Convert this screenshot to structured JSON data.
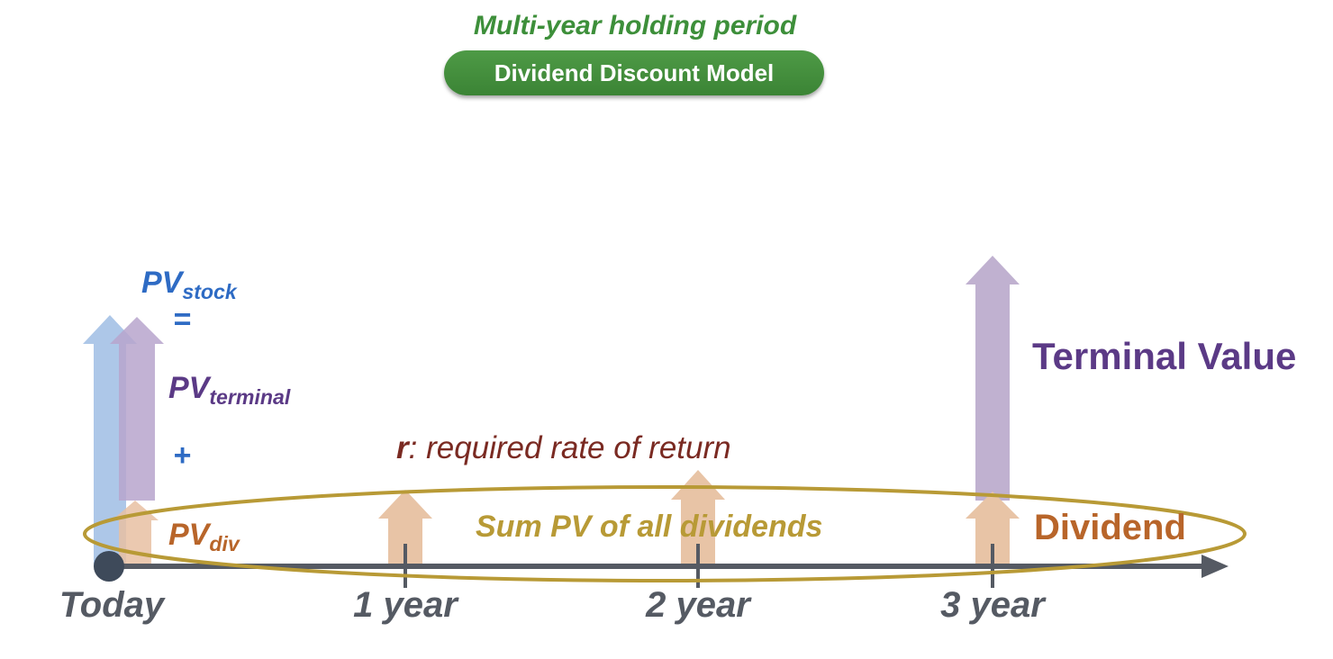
{
  "header": {
    "subtitle": "Multi-year holding period",
    "title": "Dividend Discount Model"
  },
  "formula": {
    "pv_stock_main": "PV",
    "pv_stock_sub": "stock",
    "equals": "=",
    "pv_terminal_main": "PV",
    "pv_terminal_sub": "terminal",
    "plus": "+",
    "pv_div_main": "PV",
    "pv_div_sub": "div"
  },
  "rate": {
    "symbol": "r",
    "text": ": required rate of return"
  },
  "sum_label": "Sum PV of all dividends",
  "terminal_value_label": "Terminal Value",
  "dividend_label": "Dividend",
  "timeline": {
    "ticks": [
      "Today",
      "1 year",
      "2 year",
      "3 year"
    ]
  },
  "colors": {
    "pv_stock": "#2e6bc4",
    "pv_terminal": "#5b3a86",
    "pv_div": "#b8652a",
    "rate": "#7a2a22",
    "sum": "#b89a36",
    "axis": "#555a63",
    "header_green": "#3d8f3a"
  }
}
